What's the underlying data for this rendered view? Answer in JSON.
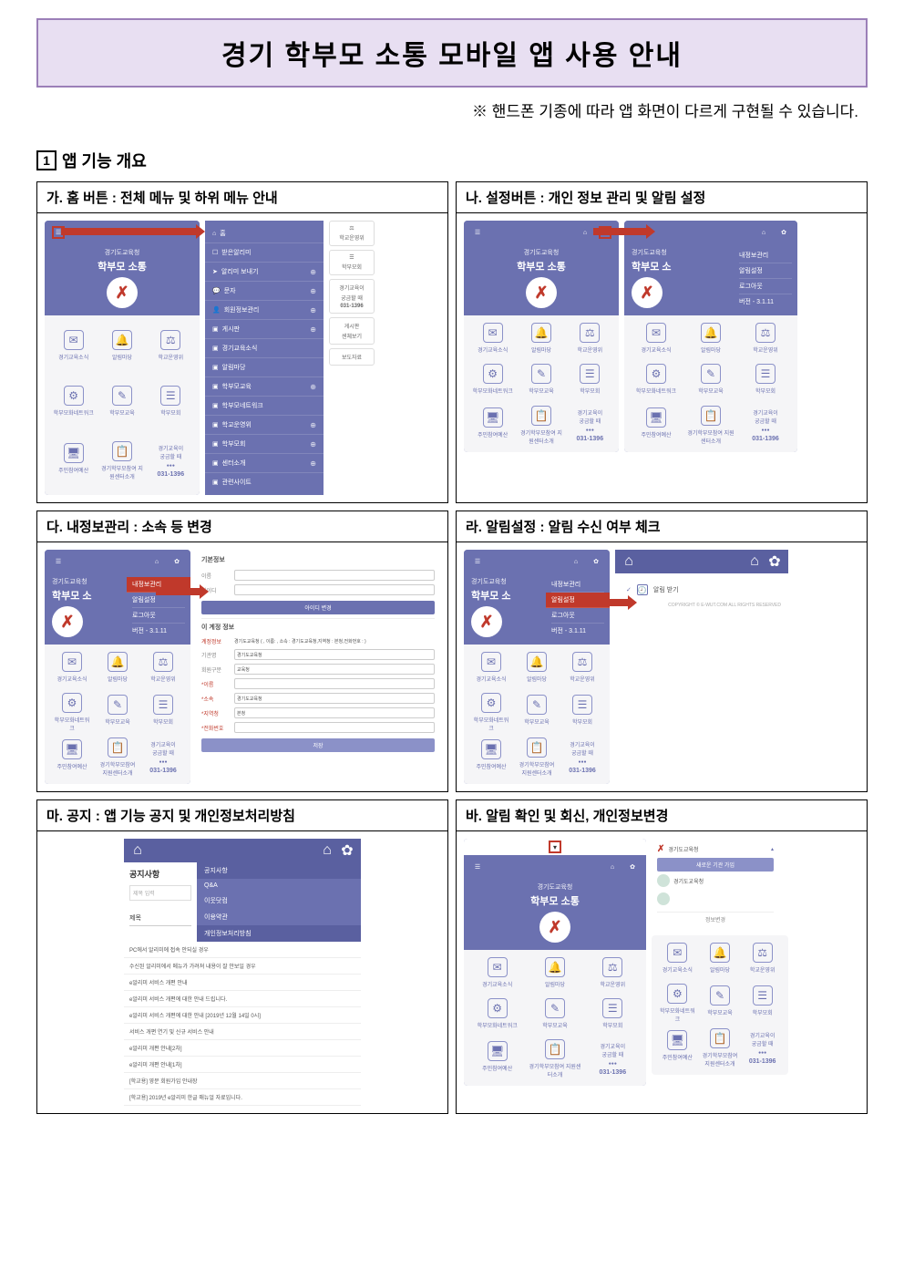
{
  "title": "경기 학부모 소통 모바일 앱 사용 안내",
  "note": "※ 핸드폰 기종에 따라 앱 화면이 다르게 구현될 수 있습니다.",
  "section1": {
    "num": "1",
    "label": "앱 기능 개요"
  },
  "colors": {
    "primary": "#6b71b0",
    "accent": "#c0392b",
    "bannerBg": "#e8dff2",
    "bannerBorder": "#9b7fb8"
  },
  "app": {
    "org": "경기도교육청",
    "name": "학부모 소통",
    "orgShort": "학부모 소",
    "version": "버전 - 3.1.11",
    "ctaTitle": "경기교육이",
    "ctaSub": "궁금할 때",
    "ctaDots": "●●●",
    "ctaNum": "031-1396"
  },
  "tiles": [
    {
      "icon": "✉",
      "label": "경기교육소식"
    },
    {
      "icon": "🔔",
      "label": "알림마당"
    },
    {
      "icon": "⚖",
      "label": "학교운영위"
    },
    {
      "icon": "⚙",
      "label": "학부모화네트워크"
    },
    {
      "icon": "✎",
      "label": "학부모교육"
    },
    {
      "icon": "☰",
      "label": "학부모회"
    },
    {
      "icon": "🖥",
      "label": "주민참여예산"
    },
    {
      "icon": "📋",
      "label": "경기학부모참여\n지원센터소개"
    }
  ],
  "homeMenu": [
    {
      "icon": "⌂",
      "label": "홈"
    },
    {
      "icon": "☐",
      "label": "받은알리미"
    },
    {
      "icon": "➤",
      "label": "알리미 보내기",
      "plus": true
    },
    {
      "icon": "💬",
      "label": "문자",
      "plus": true
    },
    {
      "icon": "👤",
      "label": "회원정보관리",
      "plus": true
    },
    {
      "icon": "▣",
      "label": "게시판",
      "plus": true
    },
    {
      "icon": "▣",
      "label": "경기교육소식"
    },
    {
      "icon": "▣",
      "label": "알림마당"
    },
    {
      "icon": "▣",
      "label": "학부모교육",
      "plus": true
    },
    {
      "icon": "▣",
      "label": "학부모네트워크"
    },
    {
      "icon": "▣",
      "label": "학교운영위",
      "plus": true
    },
    {
      "icon": "▣",
      "label": "학부모회",
      "plus": true
    },
    {
      "icon": "▣",
      "label": "센터소개",
      "plus": true
    },
    {
      "icon": "▣",
      "label": "관련사이트"
    }
  ],
  "sideCards": [
    {
      "icon": "⚖",
      "label": "학교운영위"
    },
    {
      "icon": "☰",
      "label": "학부모회"
    },
    {
      "title": "경기교육이",
      "sub": "궁금할 때",
      "num": "031-1396"
    },
    {
      "label": "센체보기",
      "sub": "게시판"
    },
    {
      "label": "보도자료"
    }
  ],
  "settingsMenu": [
    {
      "label": "내정보관리"
    },
    {
      "label": "알림설정"
    },
    {
      "label": "로그아웃"
    },
    {
      "label": "버전 - 3.1.11"
    }
  ],
  "cells": {
    "a": "가. 홈 버튼 : 전체 메뉴 및 하위 메뉴 안내",
    "b": "나. 설정버튼 : 개인 정보 관리 및 알림 설정",
    "c": "다. 내정보관리 : 소속 등 변경",
    "d": "라. 알림설정 : 알림 수신 여부 체크",
    "e": "마. 공지 : 앱 기능 공지 및 개인정보처리방침",
    "f": "바. 알림 확인 및 회신, 개인정보변경"
  },
  "profileForm": {
    "title1": "기본정보",
    "rows1": [
      {
        "label": "이름"
      },
      {
        "label": "아이디"
      }
    ],
    "btn1": "아이디 변경",
    "title2": "이 계정 정보",
    "accountLabel": "계정정보",
    "accountValue": "경기도교육청 ( , 이름: , 소속 : 경기도교육청,지역청 : 본청,전화번호 : )",
    "rows2": [
      {
        "label": "기관명",
        "value": "경기도교육청"
      },
      {
        "label": "회원구분",
        "value": "교육청"
      },
      {
        "label": "*이름",
        "req": true
      },
      {
        "label": "*소속",
        "value": "경기도교육청",
        "req": true
      },
      {
        "label": "*지역청",
        "value": "본청",
        "req": true
      },
      {
        "label": "*전화번호",
        "req": true
      }
    ],
    "btn2": "저장"
  },
  "alarm": {
    "label": "알림 받기",
    "caption": "COPYRIGHT © E-WUT.COM ALL RIGHTS RESERVED"
  },
  "notice": {
    "title": "공지사항",
    "tabs": [
      "공지사항",
      "Q&A",
      "이웃닷컴",
      "이용약관",
      "개인정보처리방침"
    ],
    "searchLabel": "제목 입력",
    "colLabel": "제목",
    "items": [
      "PC에서 알리미에 접속 안되실 경우",
      "수신된 알리미에서 메뉴가 가려져 내용이 잘 안보일 경우",
      "e알리미 서비스 개편 안내",
      "e알리미 서비스 개편에 대한 안내 드립니다.",
      "e알리미 서비스 개편에 대한 안내 [2019년 12월 14일 0시]",
      "서비스 개편 연기 및 신규 서비스 안내",
      "e알리미 개편 안내[2차]",
      "e알리미 개편 안내[1차]",
      "[학교용] 영문 회원가입 안내장",
      "[학교용] 2019년 e알리미 한글 매뉴얼 자료입니다."
    ]
  },
  "account": {
    "org": "경기도교육청",
    "newBtn": "새로운 기관 가입",
    "row1": "경기도교육청",
    "changeBtn": "정보변경"
  }
}
